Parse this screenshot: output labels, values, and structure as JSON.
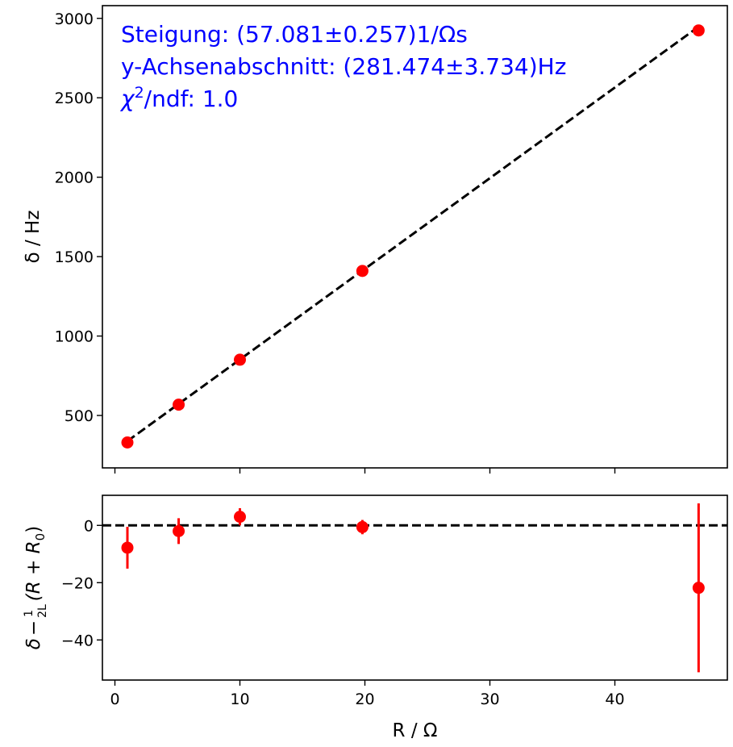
{
  "chart_data": [
    {
      "type": "scatter",
      "panel": "main",
      "xlabel": "R / Ω",
      "ylabel": "δ / Hz",
      "xlim": [
        -1,
        49
      ],
      "ylim": [
        170,
        3080
      ],
      "yticks": [
        500,
        1000,
        1500,
        2000,
        2500,
        3000
      ],
      "xticks": [
        0,
        10,
        20,
        30,
        40
      ],
      "grid": false,
      "points": {
        "x": [
          1.0,
          5.1,
          10.0,
          19.8,
          46.7
        ],
        "y": [
          330,
          568,
          851,
          1410,
          2924
        ],
        "color": "#ff0000"
      },
      "fit_line": {
        "x": [
          1.0,
          46.7
        ],
        "y": [
          338.6,
          2947.2
        ],
        "style": "dashed",
        "color": "#000000"
      },
      "annotations": [
        {
          "text_before": "Steigung: (57.081±0.257)1/Ωs"
        },
        {
          "text_before": "y-Achsenabschnitt: (281.474±3.734)Hz"
        },
        {
          "text_before": "χ",
          "sup": "2",
          "text_after": "/ndf: 1.0"
        }
      ],
      "annotation_color": "#0000ff"
    },
    {
      "type": "scatter",
      "panel": "residuals",
      "xlabel": "R / Ω",
      "ylabel_parts": {
        "delta": "δ",
        "minus": "−",
        "frac_num": "1",
        "frac_den": "2L",
        "paren": "(R + R",
        "sub": "0",
        "close": ")"
      },
      "xlim": [
        -1,
        49
      ],
      "ylim": [
        -54,
        10.5
      ],
      "yticks": [
        0,
        -20,
        -40
      ],
      "xticks": [
        0,
        10,
        20,
        30,
        40
      ],
      "reference_line": {
        "y": 0,
        "style": "dashed",
        "color": "#000000"
      },
      "points": {
        "x": [
          1.0,
          5.1,
          10.0,
          19.8,
          46.7
        ],
        "y": [
          -7.8,
          -2.0,
          3.0,
          -0.6,
          -21.8
        ],
        "yerr": [
          7.3,
          4.5,
          3.0,
          2.5,
          29.5
        ],
        "color": "#ff0000"
      }
    }
  ]
}
